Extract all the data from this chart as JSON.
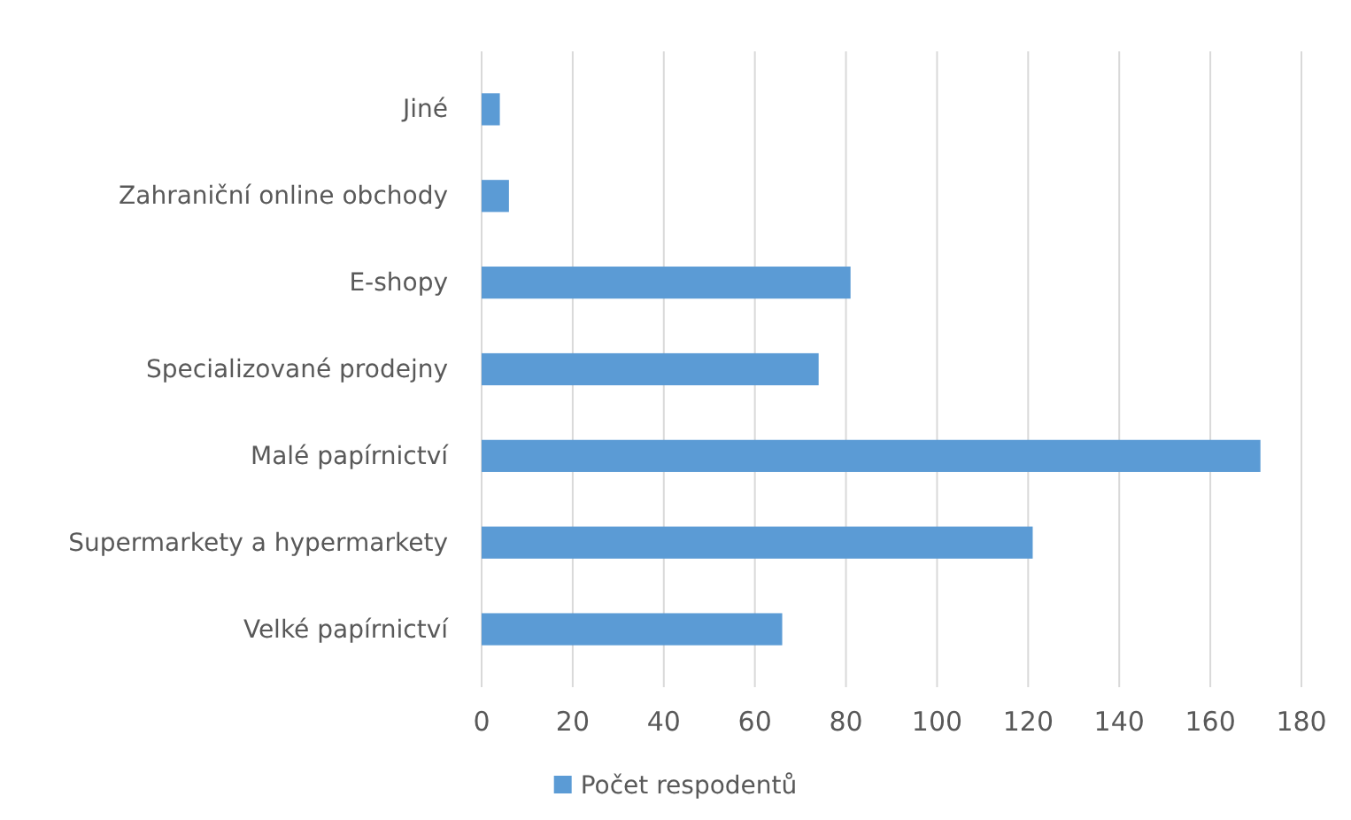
{
  "chart_data": {
    "type": "bar",
    "orientation": "horizontal",
    "categories": [
      "Jiné",
      "Zahraniční online obchody",
      "E-shopy",
      "Specializované prodejny",
      "Malé papírnictví",
      "Supermarkety a hypermarkety",
      "Velké papírnictví"
    ],
    "series": [
      {
        "name": "Počet respodentů",
        "color": "#5b9bd5",
        "values": [
          4,
          6,
          81,
          74,
          171,
          121,
          66
        ]
      }
    ],
    "xlim": [
      0,
      180
    ],
    "xticks": [
      0,
      20,
      40,
      60,
      80,
      100,
      120,
      140,
      160,
      180
    ],
    "grid": "x",
    "legend": "bottom"
  }
}
